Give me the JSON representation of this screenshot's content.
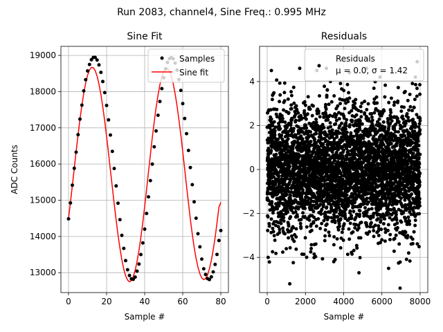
{
  "suptitle": "Run 2083, channel4, Sine Freq.: 0.995 MHz",
  "chart_data": [
    {
      "type": "scatter",
      "title": "Sine Fit",
      "xlabel": "Sample #",
      "ylabel": "ADC Counts",
      "xlim": [
        -4,
        84
      ],
      "ylim": [
        12450,
        19250
      ],
      "xticks": [
        0,
        20,
        40,
        60,
        80
      ],
      "xtick_labels": [
        "0",
        "20",
        "40",
        "60",
        "80"
      ],
      "yticks": [
        13000,
        14000,
        15000,
        16000,
        17000,
        18000,
        19000
      ],
      "ytick_labels": [
        "13000",
        "14000",
        "15000",
        "16000",
        "17000",
        "18000",
        "19000"
      ],
      "grid": true,
      "legend_placement": "top-right",
      "legend": [
        {
          "label": "Samples",
          "color": "#000000",
          "marker": "dot"
        },
        {
          "label": "Sine fit",
          "color": "#ff0000",
          "marker": "line"
        }
      ],
      "series": [
        {
          "name": "Samples",
          "kind": "points",
          "color": "#000000",
          "x": [
            0,
            1,
            2,
            3,
            4,
            5,
            6,
            7,
            8,
            9,
            10,
            11,
            12,
            13,
            14,
            15,
            16,
            17,
            18,
            19,
            20,
            21,
            22,
            23,
            24,
            25,
            26,
            27,
            28,
            29,
            30,
            31,
            32,
            33,
            34,
            35,
            36,
            37,
            38,
            39,
            40,
            41,
            42,
            43,
            44,
            45,
            46,
            47,
            48,
            49,
            50,
            51,
            52,
            53,
            54,
            55,
            56,
            57,
            58,
            59,
            60,
            61,
            62,
            63,
            64,
            65,
            66,
            67,
            68,
            69,
            70,
            71,
            72,
            73,
            74,
            75,
            76,
            77,
            78,
            79,
            80
          ],
          "y": [
            14486,
            14926,
            15417,
            15883,
            16327,
            16810,
            17240,
            17626,
            18019,
            18330,
            18571,
            18750,
            18880,
            18943,
            18945,
            18872,
            18738,
            18532,
            18277,
            17973,
            17617,
            17219,
            16801,
            16349,
            15877,
            15395,
            14917,
            14463,
            14030,
            13670,
            13332,
            13081,
            12922,
            12830,
            12815,
            12878,
            13043,
            13237,
            13500,
            13822,
            14201,
            14635,
            15094,
            15542,
            15998,
            16476,
            16913,
            17347,
            17727,
            18083,
            18382,
            18627,
            18804,
            18911,
            18938,
            18906,
            18787,
            18595,
            18335,
            18033,
            17668,
            17258,
            16840,
            16375,
            15903,
            15430,
            14957,
            14504,
            14075,
            13712,
            13375,
            13108,
            12948,
            12837,
            12810,
            12883,
            13021,
            13227,
            13502,
            13888,
            14164
          ]
        },
        {
          "name": "Sine fit",
          "kind": "line",
          "color": "#ff0000",
          "x": [
            0,
            1,
            2,
            3,
            4,
            5,
            6,
            7,
            8,
            9,
            10,
            11,
            12,
            13,
            14,
            15,
            16,
            17,
            18,
            19,
            20,
            21,
            22,
            23,
            24,
            25,
            26,
            27,
            28,
            29,
            30,
            31,
            32,
            33,
            34,
            35,
            36,
            37,
            38,
            39,
            40,
            41,
            42,
            43,
            44,
            45,
            46,
            47,
            48,
            49,
            50,
            51,
            52,
            53,
            54,
            55,
            56,
            57,
            58,
            59,
            60,
            61,
            62,
            63,
            64,
            65,
            66,
            67,
            68,
            69,
            70,
            71,
            72,
            73,
            74,
            75,
            76,
            77,
            78,
            79,
            80
          ],
          "y": [
            14495,
            14940,
            15405,
            15879,
            16350,
            16805,
            17232,
            17620,
            17958,
            18237,
            18452,
            18597,
            18667,
            18661,
            18581,
            18427,
            18204,
            17918,
            17575,
            17185,
            16757,
            16302,
            15833,
            15360,
            14896,
            14452,
            14042,
            13674,
            13358,
            13102,
            12913,
            12795,
            12750,
            12781,
            12887,
            13064,
            13309,
            13615,
            13975,
            14383,
            14828,
            15300,
            15782,
            16263,
            16727,
            17163,
            17558,
            17903,
            18189,
            18412,
            18564,
            18643,
            18646,
            18575,
            18431,
            18217,
            17939,
            17603,
            17219,
            16795,
            16342,
            15870,
            15392,
            14921,
            14472,
            14060,
            13698,
            13393,
            13148,
            12967,
            12853,
            12810,
            12838,
            12936,
            13103,
            13336,
            13629,
            13977,
            14374,
            14810,
            14940
          ]
        }
      ]
    },
    {
      "type": "scatter",
      "title": "Residuals",
      "xlabel": "Sample #",
      "ylabel": "",
      "xlim": [
        -400,
        8400
      ],
      "ylim": [
        -5.6,
        5.6
      ],
      "xticks": [
        0,
        2000,
        4000,
        6000,
        8000
      ],
      "xtick_labels": [
        "0",
        "2000",
        "4000",
        "6000",
        "8000"
      ],
      "yticks": [
        -4,
        -2,
        0,
        2,
        4
      ],
      "ytick_labels": [
        "−4",
        "−2",
        "0",
        "2",
        "4"
      ],
      "grid": true,
      "legend_placement": "top-right",
      "legend": [
        {
          "label": "Residuals",
          "color": "#000000",
          "marker": "dot"
        },
        {
          "label": "μ = 0.0, σ = 1.42",
          "color": "",
          "marker": "none"
        }
      ],
      "stats": {
        "mu": 0.0,
        "sigma": 1.42,
        "n_samples": 8000
      },
      "series": [
        {
          "name": "Residuals",
          "kind": "points",
          "color": "#000000",
          "x": [
            50,
            220,
            1180,
            1700,
            2600,
            3100,
            3550,
            4300,
            4800,
            5200,
            5900,
            6350,
            6950,
            7400,
            7850,
            7750,
            3800,
            900,
            6000,
            2300
          ],
          "y": [
            -4.0,
            4.5,
            -5.2,
            4.6,
            4.5,
            4.6,
            -4.1,
            4.4,
            -4.7,
            4.6,
            4.2,
            -4.5,
            -5.4,
            -3.8,
            4.9,
            4.2,
            3.2,
            3.5,
            -3.2,
            -3.6
          ]
        }
      ]
    }
  ]
}
